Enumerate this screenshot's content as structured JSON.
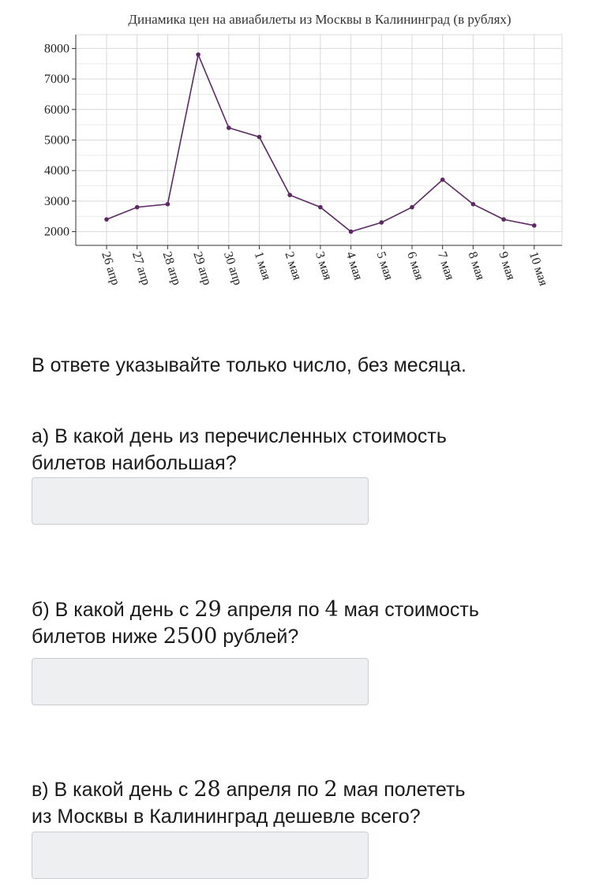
{
  "chart_data": {
    "type": "line",
    "title": "Динамика цен на авиабилеты из Москвы в Калининград (в рублях)",
    "categories": [
      "26 апр",
      "27 апр",
      "28 апр",
      "29 апр",
      "30 апр",
      "1 мая",
      "2 мая",
      "3 мая",
      "4 мая",
      "5 мая",
      "6 мая",
      "7 мая",
      "8 мая",
      "9 мая",
      "10 мая"
    ],
    "values": [
      2400,
      2800,
      2900,
      7800,
      5400,
      5100,
      3200,
      2800,
      2000,
      2300,
      2800,
      3700,
      2900,
      2400,
      2200
    ],
    "y_ticks": [
      2000,
      3000,
      4000,
      5000,
      6000,
      7000,
      8000
    ],
    "ylim": [
      1550,
      8450
    ],
    "xlabel": "",
    "ylabel": "",
    "grid": true,
    "line_color": "#5b2a63"
  },
  "instruction": "В ответе указывайте только число, без месяца.",
  "questions": [
    {
      "line1": [
        "а) В какой день из перечисленных стоимость"
      ],
      "line2": [
        "билетов наибольшая?"
      ],
      "answer": ""
    },
    {
      "line1": [
        "б) В какой день с ",
        "29",
        " апреля по ",
        "4",
        " мая стоимость"
      ],
      "line2": [
        "билетов ниже ",
        "2500",
        " рублей?"
      ],
      "answer": ""
    },
    {
      "line1": [
        "в) В какой день с ",
        "28",
        " апреля по ",
        "2",
        " мая полететь"
      ],
      "line2": [
        "из Москвы в Калининград дешевле всего?"
      ],
      "answer": ""
    }
  ]
}
